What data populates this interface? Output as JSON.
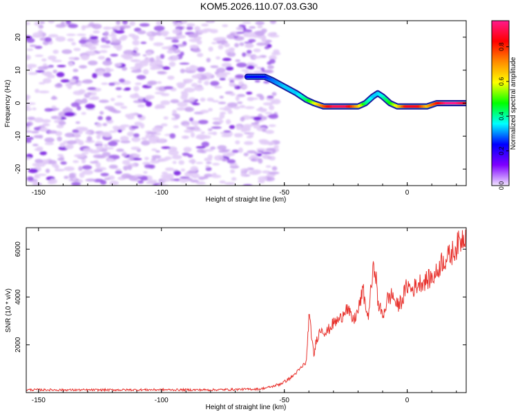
{
  "title": "KOM5.2026.110.07.03.G30",
  "colors": {
    "snr_line": "#e8322d",
    "axis": "#000000"
  },
  "chart_data": [
    {
      "type": "heatmap",
      "name": "spectrogram",
      "xlabel": "Height of straight line (km)",
      "ylabel": "Frequency (Hz)",
      "xlim": [
        -155,
        24
      ],
      "ylim": [
        -25,
        25
      ],
      "x_ticks": [
        -150,
        -100,
        -50,
        0
      ],
      "y_ticks": [
        -20,
        -10,
        0,
        10,
        20
      ],
      "x_tick_labels": [
        "-150",
        "-100",
        "-50",
        "0"
      ],
      "y_tick_labels": [
        "-20",
        "-10",
        "0",
        "10",
        "20"
      ],
      "noise_region_x": [
        -155,
        -53
      ],
      "signal_track": {
        "x": [
          -65,
          -58,
          -55,
          -50,
          -45,
          -41,
          -38,
          -34,
          -30,
          -25,
          -20,
          -17,
          -14,
          -12,
          -10,
          -7,
          -4,
          0,
          4,
          8,
          12,
          16,
          20,
          24
        ],
        "frequency": [
          8,
          8,
          7,
          5,
          3,
          1,
          0,
          -1,
          -1,
          -1,
          -1,
          0,
          2,
          3,
          2,
          0,
          -1,
          -1,
          -1,
          -1,
          0,
          0,
          0,
          0
        ],
        "amplitude": [
          0.25,
          0.25,
          0.3,
          0.35,
          0.35,
          0.45,
          0.6,
          0.8,
          0.95,
          0.95,
          0.7,
          0.45,
          0.35,
          0.35,
          0.4,
          0.5,
          0.65,
          0.9,
          0.9,
          0.7,
          0.85,
          1.0,
          1.0,
          0.9
        ]
      }
    },
    {
      "type": "colorbar",
      "name": "normalized-spectral-amplitude",
      "label": "Normalized spectral amplitude",
      "range": [
        0.0,
        0.95
      ],
      "ticks": [
        0.0,
        0.2,
        0.4,
        0.6,
        0.8
      ],
      "tick_labels": [
        "0.0",
        "0.2",
        "0.4",
        "0.6",
        "0.8"
      ],
      "stops": [
        "#f2e6ff",
        "#7f00ff",
        "#0000ff",
        "#00ffff",
        "#00ff00",
        "#ffff00",
        "#ff8c00",
        "#ff0000",
        "#ff1a8c"
      ]
    },
    {
      "type": "line",
      "name": "snr",
      "xlabel": "Height of straight line (km)",
      "ylabel": "SNR (10 * v/v)",
      "xlim": [
        -155,
        24
      ],
      "ylim": [
        0,
        6900
      ],
      "x_ticks": [
        -150,
        -100,
        -50,
        0
      ],
      "y_ticks": [
        2000,
        4000,
        6000
      ],
      "x_tick_labels": [
        "-150",
        "-100",
        "-50",
        "0"
      ],
      "y_tick_labels": [
        "2000",
        "4000",
        "6000"
      ],
      "series": [
        {
          "name": "SNR",
          "x": [
            -155,
            -130,
            -105,
            -80,
            -60,
            -55,
            -52,
            -50,
            -47,
            -45,
            -43,
            -41,
            -40,
            -39,
            -38,
            -37,
            -35,
            -33,
            -30,
            -27,
            -25,
            -22,
            -20,
            -18,
            -16,
            -14,
            -13,
            -12,
            -10,
            -8,
            -6,
            -4,
            -2,
            0,
            2,
            5,
            8,
            10,
            12,
            14,
            16,
            18,
            20,
            22,
            24
          ],
          "y": [
            120,
            110,
            120,
            115,
            150,
            250,
            350,
            450,
            650,
            850,
            1050,
            1300,
            3200,
            2500,
            1500,
            2200,
            2700,
            2500,
            2900,
            3100,
            3600,
            3000,
            3400,
            4300,
            3100,
            5000,
            5300,
            3800,
            3200,
            3900,
            4100,
            3600,
            3900,
            4500,
            4300,
            4600,
            4700,
            4800,
            5000,
            5500,
            5600,
            5800,
            6100,
            6400,
            6700
          ]
        }
      ]
    }
  ]
}
